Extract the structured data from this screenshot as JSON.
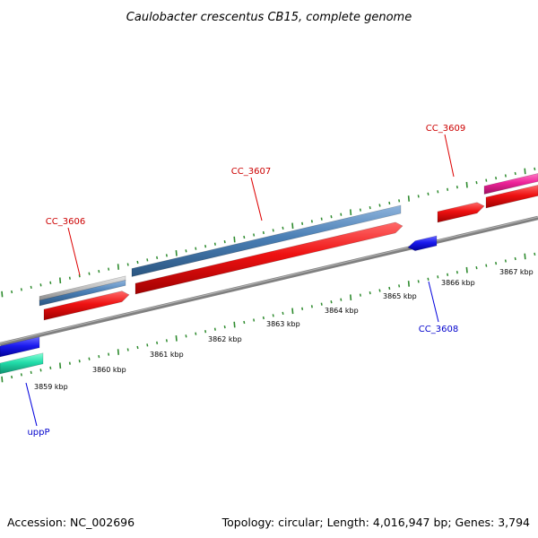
{
  "title": "Caulobacter crescentus CB15, complete genome",
  "footer": {
    "accession": "Accession: NC_002696",
    "summary": "Topology: circular; Length: 4,016,947 bp; Genes: 3,794"
  },
  "colors": {
    "backbone": "#808080",
    "tick": "#2e8b2e",
    "red_gene": "#ee1111",
    "blue_gene": "#1a1aee",
    "steel_gene": "#4a7fb5",
    "gray_gene": "#b8b8b8",
    "teal_gene": "#22ddaa",
    "magenta_gene": "#ee2299",
    "label_red": "#cc0000",
    "label_blue": "#0000cc"
  },
  "scale_labels": [
    "3859 kbp",
    "3860 kbp",
    "3861 kbp",
    "3862 kbp",
    "3863 kbp",
    "3864 kbp",
    "3865 kbp",
    "3866 kbp",
    "3867 kbp"
  ],
  "gene_labels": [
    {
      "name": "CC_3606",
      "color": "red"
    },
    {
      "name": "CC_3607",
      "color": "red"
    },
    {
      "name": "CC_3609",
      "color": "red"
    },
    {
      "name": "CC_3608",
      "color": "blue"
    },
    {
      "name": "uppP",
      "color": "blue"
    }
  ]
}
